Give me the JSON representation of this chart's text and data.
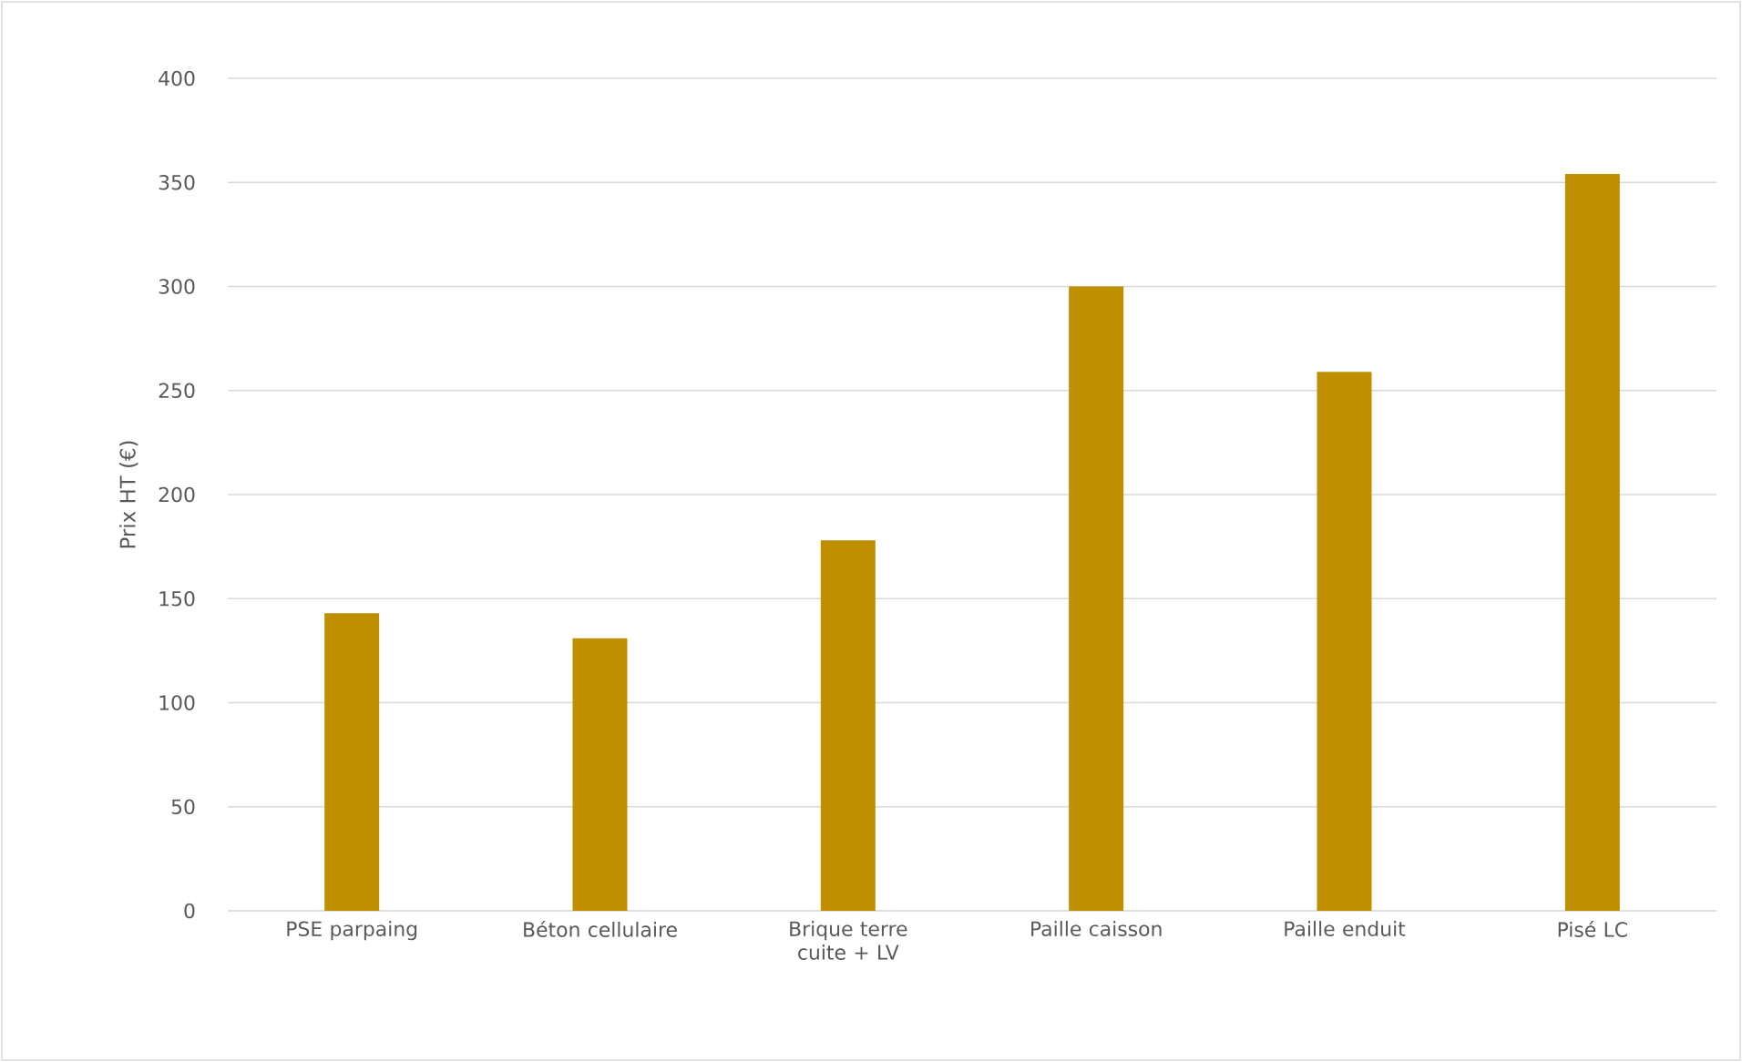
{
  "chart_data": {
    "type": "bar",
    "ylabel": "Prix HT (€)",
    "categories": [
      "PSE parpaing",
      "Béton cellulaire",
      "Brique terre cuite + LV",
      "Paille caisson",
      "Paille enduit",
      "Pisé LC"
    ],
    "values": [
      143,
      131,
      178,
      300,
      259,
      354
    ],
    "color": "#bf8f00",
    "ylim": [
      0,
      400
    ],
    "yticks": [
      0,
      50,
      100,
      150,
      200,
      250,
      300,
      350,
      400
    ],
    "grid": "y"
  }
}
